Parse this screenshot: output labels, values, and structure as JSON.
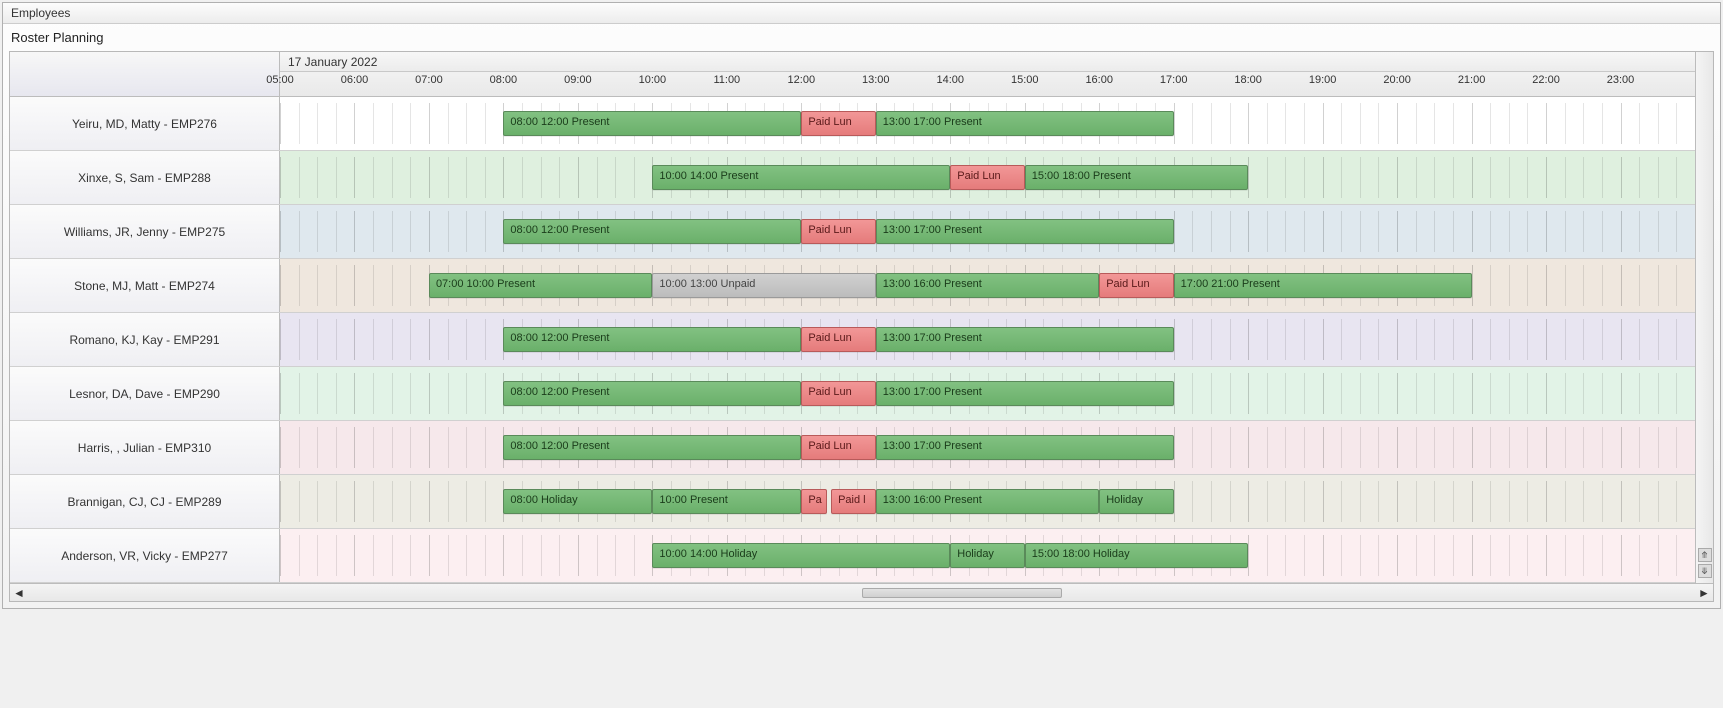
{
  "panel_title": "Employees",
  "section_title": "Roster Planning",
  "date_header": "17 January 2022",
  "time_start_hour": 5,
  "time_end_hour": 24,
  "hour_labels": [
    "05:00",
    "06:00",
    "07:00",
    "08:00",
    "09:00",
    "10:00",
    "11:00",
    "12:00",
    "13:00",
    "14:00",
    "15:00",
    "16:00",
    "17:00",
    "18:00",
    "19:00",
    "20:00",
    "21:00",
    "22:00",
    "23:00"
  ],
  "colors": {
    "present_bg": "#76b876",
    "lunch_bg": "#ec8a8a",
    "unpaid_bg": "#c6c6c6",
    "border": "#bcbcbc"
  },
  "row_tints": {
    "none": "rgba(0,0,0,0)",
    "green": "rgba(140,200,140,0.28)",
    "blue": "rgba(150,180,200,0.30)",
    "tan": "rgba(210,185,160,0.35)",
    "violet": "rgba(185,175,210,0.32)",
    "mint": "rgba(160,215,175,0.30)",
    "rose": "rgba(225,180,190,0.30)",
    "khaki": "rgba(200,195,170,0.32)",
    "pink": "rgba(245,210,215,0.35)"
  },
  "rows": [
    {
      "name": "Yeiru, MD, Matty - EMP276",
      "tint": "none",
      "bars": [
        {
          "start": 8,
          "end": 12,
          "type": "present",
          "label": "08:00 12:00 Present"
        },
        {
          "start": 12,
          "end": 13,
          "type": "lunch",
          "label": "Paid Lun"
        },
        {
          "start": 13,
          "end": 17,
          "type": "present",
          "label": "13:00 17:00 Present"
        }
      ]
    },
    {
      "name": "Xinxe, S, Sam - EMP288",
      "tint": "green",
      "bars": [
        {
          "start": 10,
          "end": 14,
          "type": "present",
          "label": "10:00 14:00 Present"
        },
        {
          "start": 14,
          "end": 15,
          "type": "lunch",
          "label": "Paid Lun"
        },
        {
          "start": 15,
          "end": 18,
          "type": "present",
          "label": "15:00 18:00 Present"
        }
      ]
    },
    {
      "name": "Williams, JR, Jenny - EMP275",
      "tint": "blue",
      "bars": [
        {
          "start": 8,
          "end": 12,
          "type": "present",
          "label": "08:00 12:00 Present"
        },
        {
          "start": 12,
          "end": 13,
          "type": "lunch",
          "label": "Paid Lun"
        },
        {
          "start": 13,
          "end": 17,
          "type": "present",
          "label": "13:00 17:00 Present"
        }
      ]
    },
    {
      "name": "Stone, MJ, Matt - EMP274",
      "tint": "tan",
      "bars": [
        {
          "start": 7,
          "end": 10,
          "type": "present",
          "label": "07:00 10:00 Present"
        },
        {
          "start": 10,
          "end": 13,
          "type": "unpaid",
          "label": "10:00 13:00 Unpaid"
        },
        {
          "start": 13,
          "end": 16,
          "type": "present",
          "label": "13:00 16:00 Present"
        },
        {
          "start": 16,
          "end": 17,
          "type": "lunch",
          "label": "Paid Lun"
        },
        {
          "start": 17,
          "end": 21,
          "type": "present",
          "label": "17:00 21:00 Present"
        }
      ]
    },
    {
      "name": "Romano, KJ, Kay - EMP291",
      "tint": "violet",
      "bars": [
        {
          "start": 8,
          "end": 12,
          "type": "present",
          "label": "08:00 12:00 Present"
        },
        {
          "start": 12,
          "end": 13,
          "type": "lunch",
          "label": "Paid Lun"
        },
        {
          "start": 13,
          "end": 17,
          "type": "present",
          "label": "13:00 17:00 Present"
        }
      ]
    },
    {
      "name": "Lesnor, DA, Dave - EMP290",
      "tint": "mint",
      "bars": [
        {
          "start": 8,
          "end": 12,
          "type": "present",
          "label": "08:00 12:00 Present"
        },
        {
          "start": 12,
          "end": 13,
          "type": "lunch",
          "label": "Paid Lun"
        },
        {
          "start": 13,
          "end": 17,
          "type": "present",
          "label": "13:00 17:00 Present"
        }
      ]
    },
    {
      "name": "Harris, , Julian - EMP310",
      "tint": "rose",
      "bars": [
        {
          "start": 8,
          "end": 12,
          "type": "present",
          "label": "08:00 12:00 Present"
        },
        {
          "start": 12,
          "end": 13,
          "type": "lunch",
          "label": "Paid Lun"
        },
        {
          "start": 13,
          "end": 17,
          "type": "present",
          "label": "13:00 17:00 Present"
        }
      ]
    },
    {
      "name": "Brannigan, CJ, CJ - EMP289",
      "tint": "khaki",
      "bars": [
        {
          "start": 8,
          "end": 10,
          "type": "holiday",
          "label": "08:00 Holiday"
        },
        {
          "start": 10,
          "end": 12,
          "type": "present",
          "label": "10:00 Present"
        },
        {
          "start": 12,
          "end": 12.35,
          "type": "lunch",
          "label": "Pa"
        },
        {
          "start": 12.4,
          "end": 13,
          "type": "lunch",
          "label": "Paid l"
        },
        {
          "start": 13,
          "end": 16,
          "type": "present",
          "label": "13:00 16:00 Present"
        },
        {
          "start": 16,
          "end": 17,
          "type": "holiday",
          "label": "Holiday"
        }
      ]
    },
    {
      "name": "Anderson, VR, Vicky - EMP277",
      "tint": "pink",
      "bars": [
        {
          "start": 10,
          "end": 14,
          "type": "holiday",
          "label": "10:00 14:00 Holiday"
        },
        {
          "start": 14,
          "end": 15,
          "type": "holiday",
          "label": "Holiday"
        },
        {
          "start": 15,
          "end": 18,
          "type": "holiday",
          "label": "15:00 18:00 Holiday"
        }
      ]
    }
  ],
  "hscroll_thumb": {
    "left_pct": 50,
    "width_pct": 12
  }
}
